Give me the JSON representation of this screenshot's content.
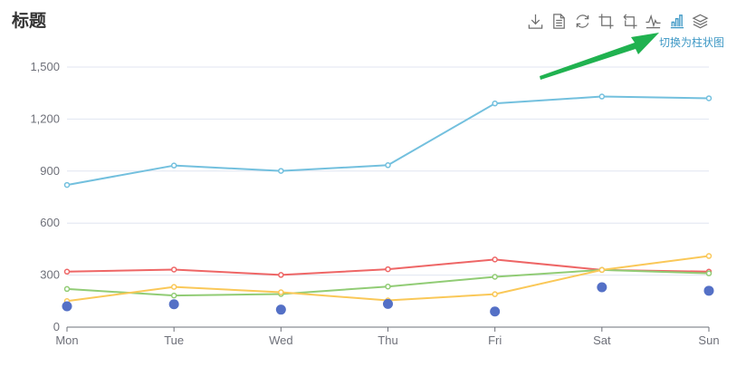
{
  "title": "标题",
  "toolbox": {
    "items": [
      {
        "name": "save-as-image",
        "icon": "download-icon"
      },
      {
        "name": "data-view",
        "icon": "document-icon"
      },
      {
        "name": "restore",
        "icon": "refresh-icon"
      },
      {
        "name": "zoom",
        "icon": "crop-icon"
      },
      {
        "name": "zoom-back",
        "icon": "undo-crop-icon"
      },
      {
        "name": "switch-line",
        "icon": "line-chart-icon"
      },
      {
        "name": "switch-bar",
        "icon": "bar-chart-icon"
      },
      {
        "name": "switch-stack",
        "icon": "stack-layers-icon"
      }
    ],
    "active_hint": "切换为柱状图",
    "icon_color": "#6e6e6e",
    "active_color": "#3e98c5"
  },
  "arrow_color": "#20b250",
  "chart_data": {
    "type": "line",
    "categories": [
      "Mon",
      "Tue",
      "Wed",
      "Thu",
      "Fri",
      "Sat",
      "Sun"
    ],
    "ylim": [
      0,
      1500
    ],
    "yticks": [
      "0",
      "300",
      "600",
      "900",
      "1,200",
      "1,500"
    ],
    "grid": true,
    "series": [
      {
        "type": "line",
        "color": "#73c0de",
        "values": [
          820,
          932,
          901,
          934,
          1290,
          1330,
          1320
        ]
      },
      {
        "type": "line",
        "color": "#ee6666",
        "values": [
          320,
          332,
          301,
          334,
          390,
          330,
          320
        ]
      },
      {
        "type": "line",
        "color": "#91cc75",
        "values": [
          220,
          182,
          191,
          234,
          290,
          330,
          310
        ]
      },
      {
        "type": "line",
        "color": "#fac858",
        "values": [
          150,
          232,
          201,
          154,
          190,
          330,
          410
        ]
      },
      {
        "type": "scatter",
        "color": "#5470c6",
        "values": [
          120,
          132,
          101,
          134,
          90,
          230,
          210
        ]
      }
    ]
  }
}
